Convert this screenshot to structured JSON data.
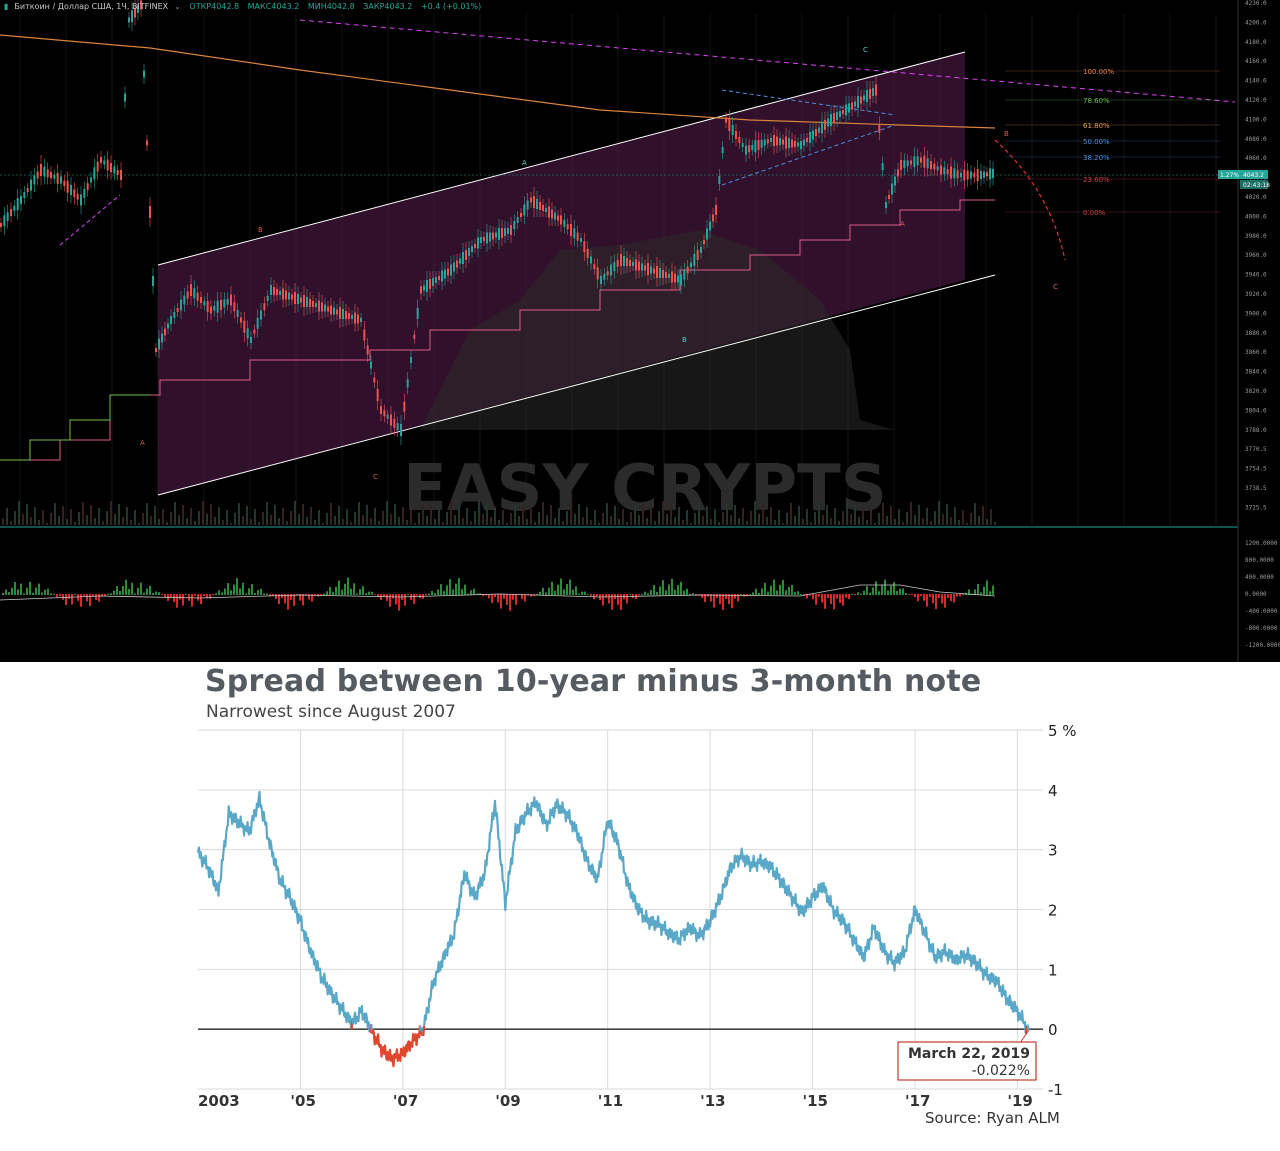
{
  "top_chart": {
    "header": {
      "symbol": "Биткоин / Доллар США, 1Ч, BITFINEX",
      "open": "ОТКР4042.8",
      "high": "МАКС4043.2",
      "low": "МИН4042.8",
      "close": "ЗАКР4043.2",
      "change": "+0.4 (+0.01%)"
    },
    "watermark": "EASY CRYPTS",
    "price_ticks": [
      "4230.0",
      "4200.0",
      "4180.0",
      "4160.0",
      "4140.0",
      "4120.0",
      "4100.0",
      "4080.0",
      "4060.0",
      "4040.0",
      "4020.0",
      "4000.0",
      "3980.0",
      "3960.0",
      "3940.0",
      "3920.0",
      "3900.0",
      "3880.0",
      "3860.0",
      "3840.0",
      "3820.0",
      "3804.0",
      "3788.0",
      "3770.5",
      "3754.5",
      "3738.5",
      "3725.5"
    ],
    "price_tag": "4043.2",
    "percent_tag": "1.27%",
    "timer_tag": "02:43:18",
    "fib_levels": [
      "100.00%",
      "78.60%",
      "61.80%",
      "50.00%",
      "38.20%",
      "23.60%",
      "0.00%"
    ],
    "wave_labels": [
      "A",
      "B",
      "C",
      "A",
      "B",
      "C",
      "A",
      "B",
      "C"
    ],
    "osc_ticks": [
      "1200.0000",
      "800.0000",
      "400.0000",
      "0.0000",
      "-400.0000",
      "-800.0000",
      "-1200.0000"
    ],
    "colors": {
      "bull": "#26a69a",
      "bear": "#ef5350",
      "channel": "#ffffff",
      "fib": "#e6844a",
      "magenta": "#e040fb",
      "bg": "#000000"
    }
  },
  "spread_chart": {
    "title": "Spread between 10-year minus 3-month note",
    "subtitle": "Narrowest since August 2007",
    "source": "Source: Ryan ALM",
    "annotation_date": "March 22, 2019",
    "annotation_value": "-0.022%",
    "chart_data": {
      "type": "line",
      "title": "Spread between 10-year minus 3-month note",
      "subtitle": "Narrowest since August 2007",
      "x_tick_labels": [
        "2003",
        "'05",
        "'07",
        "'09",
        "'11",
        "'13",
        "'15",
        "'17",
        "'19"
      ],
      "y_tick_labels": [
        "5 %",
        "4",
        "3",
        "2",
        "1",
        "0",
        "-1"
      ],
      "ylim": [
        -1,
        5
      ],
      "xlim": [
        2003,
        2019.5
      ],
      "grid": true,
      "series": [
        {
          "color_positive": "#5aa8c8",
          "color_negative": "#e0452e",
          "x": [
            2003.0,
            2003.2,
            2003.4,
            2003.6,
            2003.8,
            2004.0,
            2004.2,
            2004.4,
            2004.6,
            2004.8,
            2005.0,
            2005.2,
            2005.4,
            2005.6,
            2005.8,
            2006.0,
            2006.2,
            2006.4,
            2006.6,
            2006.8,
            2007.0,
            2007.2,
            2007.4,
            2007.6,
            2007.8,
            2008.0,
            2008.2,
            2008.4,
            2008.6,
            2008.8,
            2009.0,
            2009.2,
            2009.4,
            2009.6,
            2009.8,
            2010.0,
            2010.2,
            2010.4,
            2010.6,
            2010.8,
            2011.0,
            2011.2,
            2011.4,
            2011.6,
            2011.8,
            2012.0,
            2012.2,
            2012.4,
            2012.6,
            2012.8,
            2013.0,
            2013.2,
            2013.4,
            2013.6,
            2013.8,
            2014.0,
            2014.2,
            2014.4,
            2014.6,
            2014.8,
            2015.0,
            2015.2,
            2015.4,
            2015.6,
            2015.8,
            2016.0,
            2016.2,
            2016.4,
            2016.6,
            2016.8,
            2017.0,
            2017.2,
            2017.4,
            2017.6,
            2017.8,
            2018.0,
            2018.2,
            2018.4,
            2018.6,
            2018.8,
            2019.0,
            2019.22
          ],
          "y": [
            2.95,
            2.7,
            2.3,
            3.6,
            3.45,
            3.3,
            3.85,
            3.1,
            2.5,
            2.2,
            1.8,
            1.3,
            0.9,
            0.6,
            0.35,
            0.1,
            0.3,
            -0.05,
            -0.35,
            -0.5,
            -0.4,
            -0.2,
            0.0,
            0.8,
            1.2,
            1.6,
            2.6,
            2.2,
            2.6,
            3.8,
            2.1,
            3.3,
            3.6,
            3.8,
            3.4,
            3.75,
            3.6,
            3.3,
            2.8,
            2.5,
            3.5,
            3.1,
            2.4,
            2.0,
            1.8,
            1.75,
            1.6,
            1.5,
            1.7,
            1.55,
            1.8,
            2.2,
            2.7,
            2.9,
            2.75,
            2.8,
            2.7,
            2.45,
            2.2,
            1.95,
            2.2,
            2.4,
            2.0,
            1.8,
            1.5,
            1.2,
            1.7,
            1.3,
            1.1,
            1.3,
            2.0,
            1.6,
            1.2,
            1.3,
            1.15,
            1.25,
            1.1,
            0.9,
            0.8,
            0.5,
            0.3,
            -0.022
          ]
        }
      ]
    }
  }
}
